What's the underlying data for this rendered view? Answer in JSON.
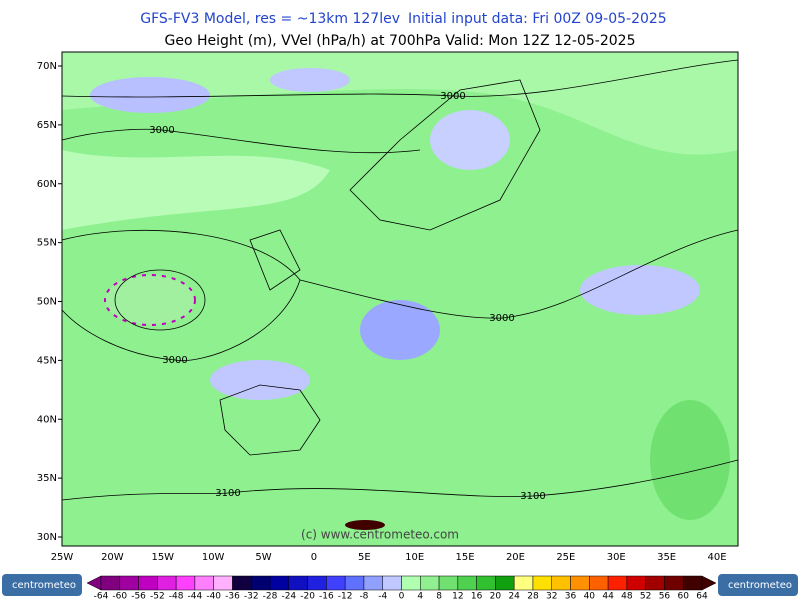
{
  "header": {
    "model": "GFS-FV3 Model, res = ~13km 127lev",
    "init": "Initial input data: Fri 00Z 09-05-2025",
    "subtitle": "Geo Height (m), VVel (hPa/h) at 700hPa  Valid: Mon 12Z 12-05-2025"
  },
  "map": {
    "lat_labels": [
      "70N",
      "65N",
      "60N",
      "55N",
      "50N",
      "45N",
      "40N",
      "35N",
      "30N"
    ],
    "lon_labels": [
      "25W",
      "20W",
      "15W",
      "10W",
      "5W",
      "0",
      "5E",
      "10E",
      "15E",
      "20E",
      "25E",
      "30E",
      "35E",
      "40E"
    ],
    "contour_labels": [
      "3000",
      "3000",
      "3000",
      "3000",
      "3100",
      "3100"
    ],
    "watermark": "(c) www.centrometeo.com"
  },
  "colorbar": {
    "labels": [
      "-64",
      "-60",
      "-56",
      "-52",
      "-48",
      "-44",
      "-40",
      "-36",
      "-32",
      "-28",
      "-24",
      "-20",
      "-16",
      "-12",
      "-8",
      "-4",
      "0",
      "4",
      "8",
      "12",
      "16",
      "20",
      "24",
      "28",
      "32",
      "36",
      "40",
      "44",
      "48",
      "52",
      "56",
      "60",
      "64"
    ],
    "colors": [
      "#800080",
      "#a000a0",
      "#c000c0",
      "#e020e0",
      "#ff40ff",
      "#ff80ff",
      "#ffb0ff",
      "#100040",
      "#000070",
      "#0000a0",
      "#1010c0",
      "#2020e0",
      "#4040ff",
      "#6070ff",
      "#90a0ff",
      "#c0c8ff",
      "#b0ffb0",
      "#90f090",
      "#70e070",
      "#50d050",
      "#30c030",
      "#10a010",
      "#ffff80",
      "#ffe000",
      "#ffc000",
      "#ff9000",
      "#ff6000",
      "#ff2000",
      "#d00000",
      "#a00000",
      "#700000",
      "#400000"
    ]
  },
  "logo": {
    "left": "centrometeo",
    "right": "centrometeo"
  }
}
